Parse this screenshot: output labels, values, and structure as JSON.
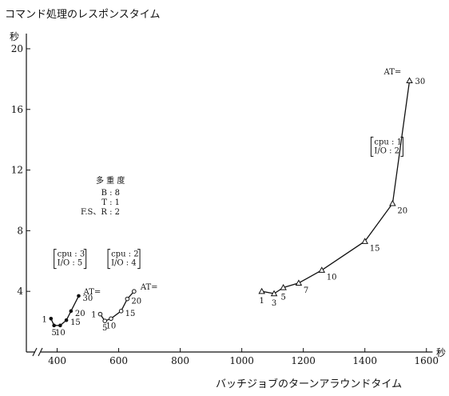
{
  "chart_data": {
    "type": "line",
    "title": "コマンド処理のレスポンスタイム",
    "xlabel": "バッチジョブのターンアラウンドタイム",
    "ylabel": "",
    "x_unit": "秒",
    "y_unit": "秒",
    "xlim": [
      300,
      1650
    ],
    "ylim": [
      0,
      21
    ],
    "x_ticks": [
      400,
      600,
      800,
      1000,
      1200,
      1400,
      1600
    ],
    "y_ticks": [
      4,
      8,
      12,
      16,
      20
    ],
    "axis_break": true,
    "grid": false,
    "legend": "none",
    "note": {
      "heading": "多 重 度",
      "lines": [
        "B : 8",
        "T : 1",
        "F.S、R : 2"
      ]
    },
    "series": [
      {
        "ratio": [
          "cpu : 3",
          "I/O : 5"
        ],
        "marker": "filled-circle",
        "end_label": "AT=",
        "points": [
          {
            "x": 380,
            "y": 2.2,
            "label": "1"
          },
          {
            "x": 390,
            "y": 1.75,
            "label": "5"
          },
          {
            "x": 410,
            "y": 1.75,
            "label": "10"
          },
          {
            "x": 430,
            "y": 2.1,
            "label": "15"
          },
          {
            "x": 445,
            "y": 2.7,
            "label": "20"
          },
          {
            "x": 470,
            "y": 3.7,
            "label": "30"
          }
        ]
      },
      {
        "ratio": [
          "cpu : 2",
          "I/O : 4"
        ],
        "marker": "open-circle",
        "end_label": "AT=",
        "points": [
          {
            "x": 540,
            "y": 2.5,
            "label": "1"
          },
          {
            "x": 555,
            "y": 2.05,
            "label": "5"
          },
          {
            "x": 575,
            "y": 2.2,
            "label": "10"
          },
          {
            "x": 608,
            "y": 2.7,
            "label": "15"
          },
          {
            "x": 628,
            "y": 3.5,
            "label": "20"
          },
          {
            "x": 650,
            "y": 4.0,
            "label": ""
          }
        ]
      },
      {
        "ratio": [
          "cpu : 1",
          "I/O : 2"
        ],
        "marker": "open-triangle",
        "end_label": "AT=",
        "points": [
          {
            "x": 1065,
            "y": 4.0,
            "label": "1"
          },
          {
            "x": 1105,
            "y": 3.85,
            "label": "3"
          },
          {
            "x": 1135,
            "y": 4.25,
            "label": "5"
          },
          {
            "x": 1185,
            "y": 4.55,
            "label": "7"
          },
          {
            "x": 1260,
            "y": 5.4,
            "label": "10"
          },
          {
            "x": 1400,
            "y": 7.3,
            "label": "15"
          },
          {
            "x": 1490,
            "y": 9.8,
            "label": "20"
          },
          {
            "x": 1545,
            "y": 17.9,
            "label": "30"
          }
        ]
      }
    ]
  }
}
